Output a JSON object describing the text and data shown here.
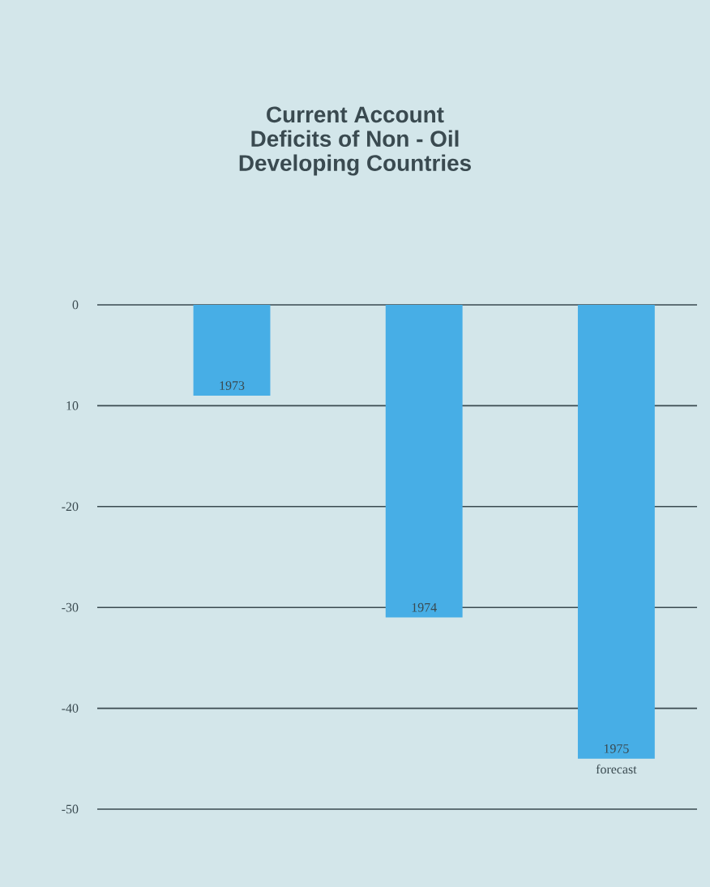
{
  "chart_data": {
    "type": "bar",
    "title": "Current Account\nDeficits of Non - Oil\nDeveloping Countries",
    "categories": [
      "1973",
      "1974",
      "1975"
    ],
    "values": [
      -9,
      -31,
      -45
    ],
    "color": "#47aee6",
    "ylim": [
      -50,
      0
    ],
    "yticks": [
      0,
      {
        "value": -10,
        "label": "10"
      },
      -20,
      -30,
      -40,
      -50
    ],
    "grid": "y",
    "annotations": [
      {
        "text": "forecast",
        "x": "1975",
        "y": -45
      }
    ]
  }
}
